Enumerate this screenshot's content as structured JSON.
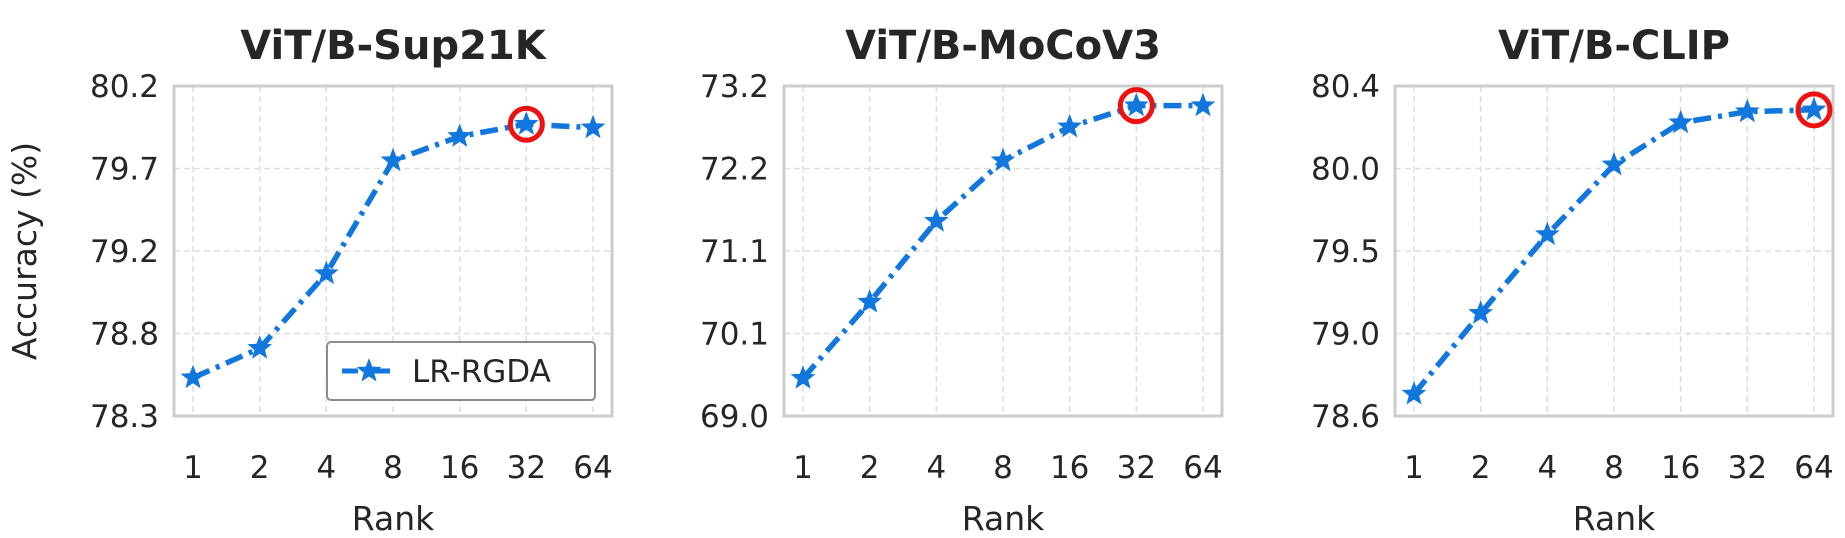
{
  "figure": {
    "ylabel": "Accuracy (%)",
    "legend_label": "LR-RGDA",
    "line_color": "#1177DD",
    "highlight_color": "#EE1111"
  },
  "chart_data": [
    {
      "type": "line",
      "title": "ViT/B-Sup21K",
      "xlabel": "Rank",
      "ylabel": "Accuracy (%)",
      "categories": [
        "1",
        "2",
        "4",
        "8",
        "16",
        "32",
        "64"
      ],
      "yticks": [
        "78.3",
        "78.8",
        "79.2",
        "79.7",
        "80.2"
      ],
      "ylim": [
        78.3,
        80.2
      ],
      "series": [
        {
          "name": "LR-RGDA",
          "values": [
            78.52,
            78.69,
            79.12,
            79.77,
            79.91,
            79.98,
            79.96
          ]
        }
      ],
      "highlight_index": 5,
      "legend": "lower-right",
      "grid": true
    },
    {
      "type": "line",
      "title": "ViT/B-MoCoV3",
      "xlabel": "Rank",
      "ylabel": "",
      "categories": [
        "1",
        "2",
        "4",
        "8",
        "16",
        "32",
        "64"
      ],
      "yticks": [
        "69.0",
        "70.1",
        "71.1",
        "72.2",
        "73.2"
      ],
      "ylim": [
        69.0,
        73.2
      ],
      "series": [
        {
          "name": "LR-RGDA",
          "values": [
            69.48,
            70.45,
            71.48,
            72.25,
            72.68,
            72.95,
            72.95
          ]
        }
      ],
      "highlight_index": 5,
      "legend": "none",
      "grid": true
    },
    {
      "type": "line",
      "title": "ViT/B-CLIP",
      "xlabel": "Rank",
      "ylabel": "",
      "categories": [
        "1",
        "2",
        "4",
        "8",
        "16",
        "32",
        "64"
      ],
      "yticks": [
        "78.6",
        "79.0",
        "79.5",
        "80.0",
        "80.4"
      ],
      "ylim": [
        78.6,
        80.4
      ],
      "series": [
        {
          "name": "LR-RGDA",
          "values": [
            78.72,
            79.16,
            79.59,
            79.97,
            80.2,
            80.26,
            80.27
          ]
        }
      ],
      "highlight_index": 6,
      "legend": "none",
      "grid": true
    }
  ]
}
